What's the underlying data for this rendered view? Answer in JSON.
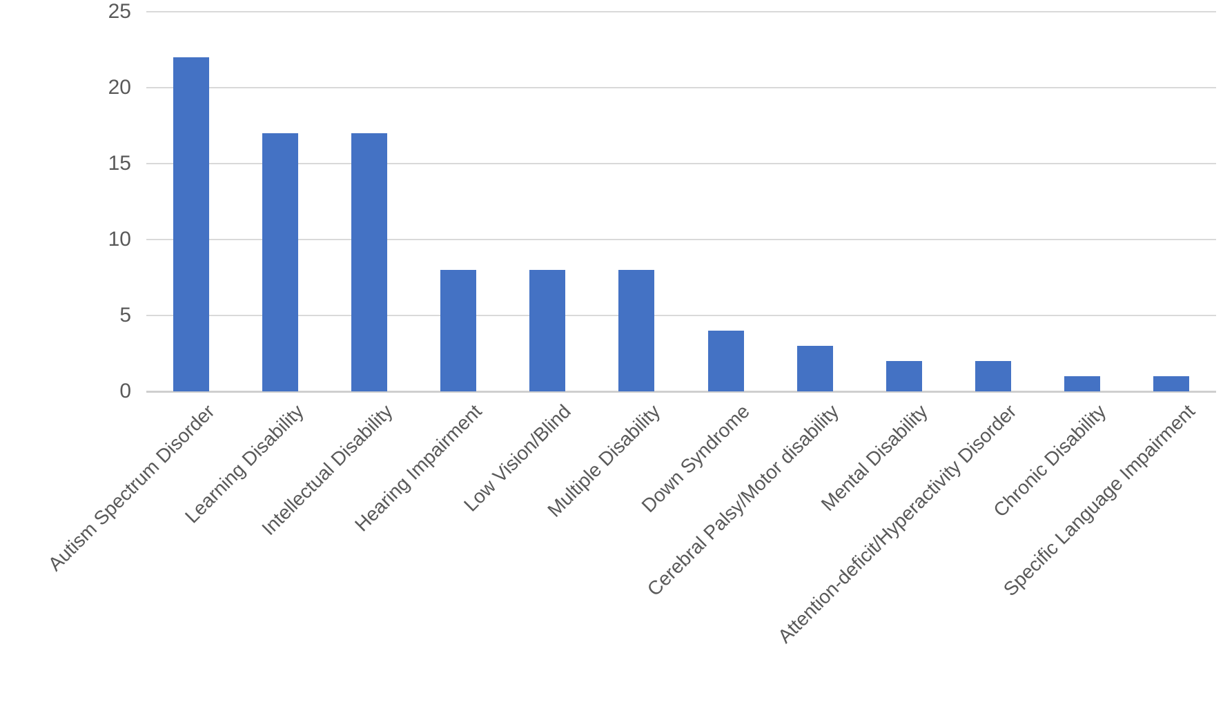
{
  "chart_data": {
    "type": "bar",
    "title": "",
    "xlabel": "",
    "ylabel": "",
    "categories": [
      "Autism Spectrum Disorder",
      "Learning Disability",
      "Intellectual Disability",
      "Hearing Impairment",
      "Low Vision/Blind",
      "Multiple Disability",
      "Down Syndrome",
      "Cerebral Palsy/Motor disability",
      "Mental Disability",
      "Attention-deficit/Hyperactivity Disorder",
      "Chronic Disability",
      "Specific Language Impairment"
    ],
    "values": [
      22,
      17,
      17,
      8,
      8,
      8,
      4,
      3,
      2,
      2,
      1,
      1
    ],
    "ylim": [
      0,
      25
    ],
    "yticks": [
      0,
      5,
      10,
      15,
      20,
      25
    ],
    "grid": true,
    "legend": false,
    "x_label_rotation_deg": -45,
    "bar_color": "#4472C4",
    "gridline_color": "#D9D9D9",
    "axis_line_color": "#CFCFCF",
    "tick_label_color": "#595959",
    "background": "#FFFFFF"
  }
}
